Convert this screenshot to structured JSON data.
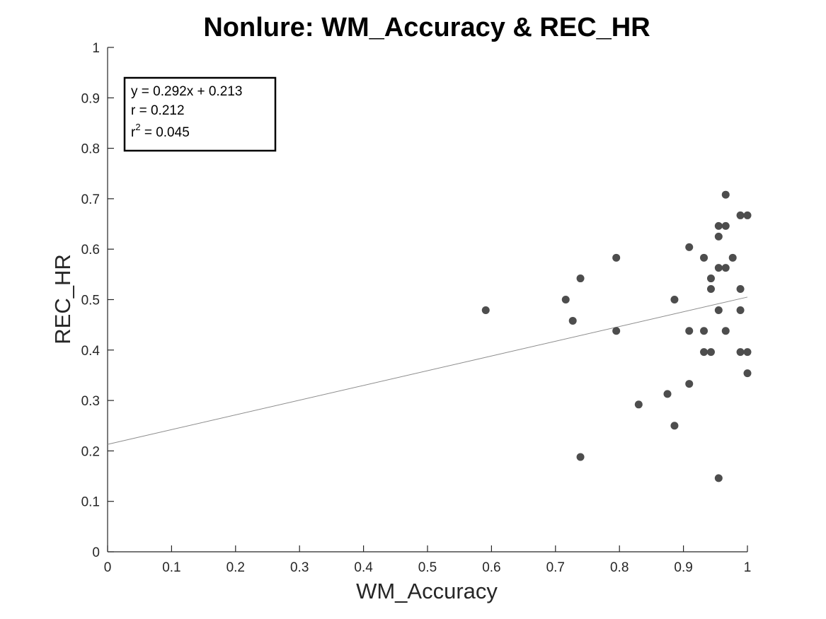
{
  "chart_data": {
    "type": "scatter",
    "title": "Nonlure: WM_Accuracy & REC_HR",
    "xlabel": "WM_Accuracy",
    "ylabel": "REC_HR",
    "xlim": [
      0,
      1
    ],
    "ylim": [
      0,
      1
    ],
    "xticks": [
      "0",
      "0.1",
      "0.2",
      "0.3",
      "0.4",
      "0.5",
      "0.6",
      "0.7",
      "0.8",
      "0.9",
      "1"
    ],
    "yticks": [
      "0",
      "0.1",
      "0.2",
      "0.3",
      "0.4",
      "0.5",
      "0.6",
      "0.7",
      "0.8",
      "0.9",
      "1"
    ],
    "grid": false,
    "marker_color": "#4d4d4d",
    "fit_line_color": "#8c8c8c",
    "points": [
      {
        "x": 0.591,
        "y": 0.479
      },
      {
        "x": 0.716,
        "y": 0.5
      },
      {
        "x": 0.727,
        "y": 0.458
      },
      {
        "x": 0.739,
        "y": 0.542
      },
      {
        "x": 0.739,
        "y": 0.188
      },
      {
        "x": 0.795,
        "y": 0.583
      },
      {
        "x": 0.795,
        "y": 0.438
      },
      {
        "x": 0.83,
        "y": 0.292
      },
      {
        "x": 0.875,
        "y": 0.313
      },
      {
        "x": 0.886,
        "y": 0.5
      },
      {
        "x": 0.886,
        "y": 0.25
      },
      {
        "x": 0.909,
        "y": 0.604
      },
      {
        "x": 0.909,
        "y": 0.438
      },
      {
        "x": 0.909,
        "y": 0.333
      },
      {
        "x": 0.932,
        "y": 0.583
      },
      {
        "x": 0.932,
        "y": 0.438
      },
      {
        "x": 0.932,
        "y": 0.396
      },
      {
        "x": 0.943,
        "y": 0.542
      },
      {
        "x": 0.943,
        "y": 0.521
      },
      {
        "x": 0.943,
        "y": 0.396
      },
      {
        "x": 0.955,
        "y": 0.646
      },
      {
        "x": 0.955,
        "y": 0.625
      },
      {
        "x": 0.955,
        "y": 0.563
      },
      {
        "x": 0.955,
        "y": 0.479
      },
      {
        "x": 0.955,
        "y": 0.146
      },
      {
        "x": 0.966,
        "y": 0.708
      },
      {
        "x": 0.966,
        "y": 0.646
      },
      {
        "x": 0.966,
        "y": 0.563
      },
      {
        "x": 0.966,
        "y": 0.438
      },
      {
        "x": 0.977,
        "y": 0.583
      },
      {
        "x": 0.989,
        "y": 0.667
      },
      {
        "x": 0.989,
        "y": 0.521
      },
      {
        "x": 0.989,
        "y": 0.479
      },
      {
        "x": 0.989,
        "y": 0.396
      },
      {
        "x": 1.0,
        "y": 0.667
      },
      {
        "x": 1.0,
        "y": 0.396
      },
      {
        "x": 1.0,
        "y": 0.354
      }
    ],
    "fit_line": {
      "slope": 0.292,
      "intercept": 0.213
    },
    "annotation": {
      "equation": "y = 0.292x + 0.213",
      "r": "r = 0.212",
      "r2_prefix": "r",
      "r2_sup": "2",
      "r2_value": " = 0.045"
    },
    "annotation_placement": "top-left"
  }
}
